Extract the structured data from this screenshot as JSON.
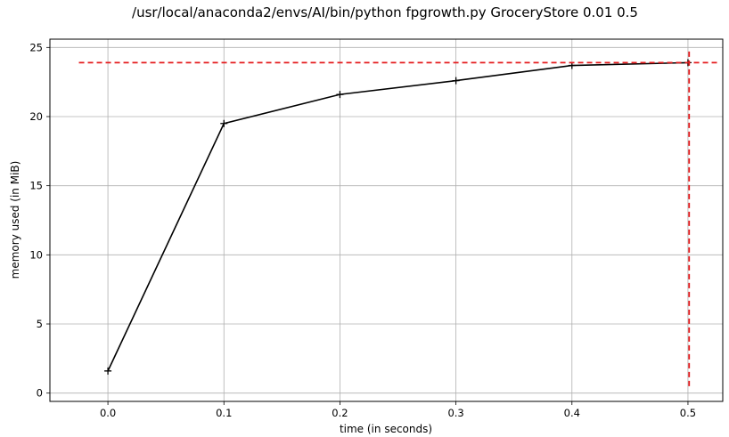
{
  "chart_data": {
    "type": "line",
    "title": "/usr/local/anaconda2/envs/AI/bin/python fpgrowth.py GroceryStore 0.01 0.5",
    "xlabel": "time (in seconds)",
    "ylabel": "memory used (in MiB)",
    "xlim": [
      -0.05,
      0.53
    ],
    "ylim": [
      -0.6,
      25.6
    ],
    "xticks": [
      0.0,
      0.1,
      0.2,
      0.3,
      0.4,
      0.5
    ],
    "xtick_labels": [
      "0.0",
      "0.1",
      "0.2",
      "0.3",
      "0.4",
      "0.5"
    ],
    "yticks": [
      0,
      5,
      10,
      15,
      20,
      25
    ],
    "ytick_labels": [
      "0",
      "5",
      "10",
      "15",
      "20",
      "25"
    ],
    "grid": true,
    "series": [
      {
        "color": "#000000",
        "marker": "+",
        "x": [
          0.0,
          0.1,
          0.2,
          0.3,
          0.4,
          0.5
        ],
        "y": [
          1.6,
          19.5,
          21.6,
          22.6,
          23.7,
          23.9
        ]
      }
    ],
    "reference_lines": {
      "color": "#e41a1c",
      "style": "dashed",
      "horizontal": {
        "y": 23.9,
        "x_from": -0.025,
        "x_to": 0.525
      },
      "vertical": {
        "x": 0.501,
        "y_from": 0.5,
        "y_to": 24.9
      }
    }
  }
}
